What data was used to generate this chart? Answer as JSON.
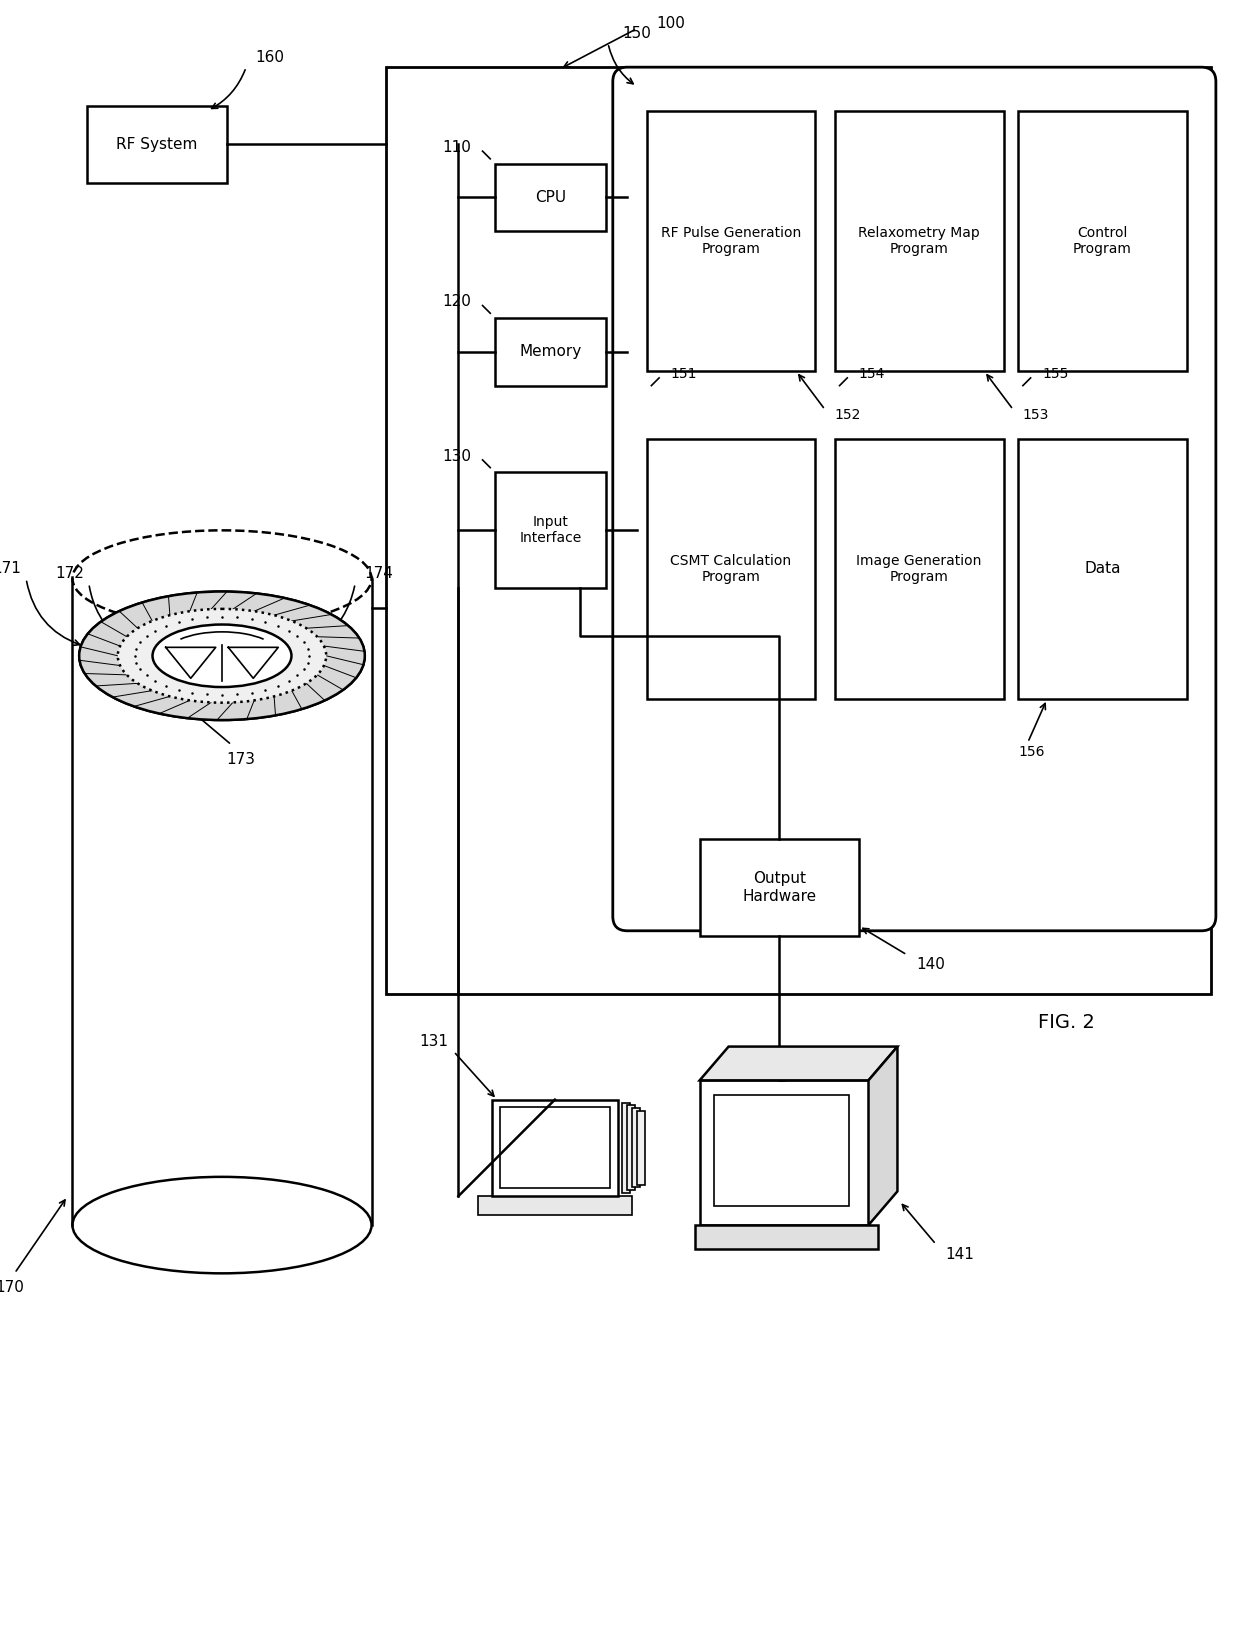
{
  "fig_label": "FIG. 2",
  "bg_color": "#ffffff",
  "labels": {
    "rf_system": "RF System",
    "cpu": "CPU",
    "memory": "Memory",
    "input_interface": "Input\nInterface",
    "output_hardware": "Output\nHardware",
    "rf_pulse": "RF Pulse Generation\nProgram",
    "relaxometry": "Relaxometry Map\nProgram",
    "control": "Control\nProgram",
    "csmt": "CSMT Calculation\nProgram",
    "image_gen": "Image Generation\nProgram",
    "data": "Data"
  },
  "numbers": {
    "n100": "100",
    "n110": "110",
    "n120": "120",
    "n130": "130",
    "n140": "140",
    "n150": "150",
    "n151": "151",
    "n152": "152",
    "n153": "153",
    "n154": "154",
    "n155": "155",
    "n156": "156",
    "n160": "160",
    "n170": "170",
    "n171": "171",
    "n172": "172",
    "n173": "173",
    "n174": "174",
    "n131": "131",
    "n141": "141"
  }
}
